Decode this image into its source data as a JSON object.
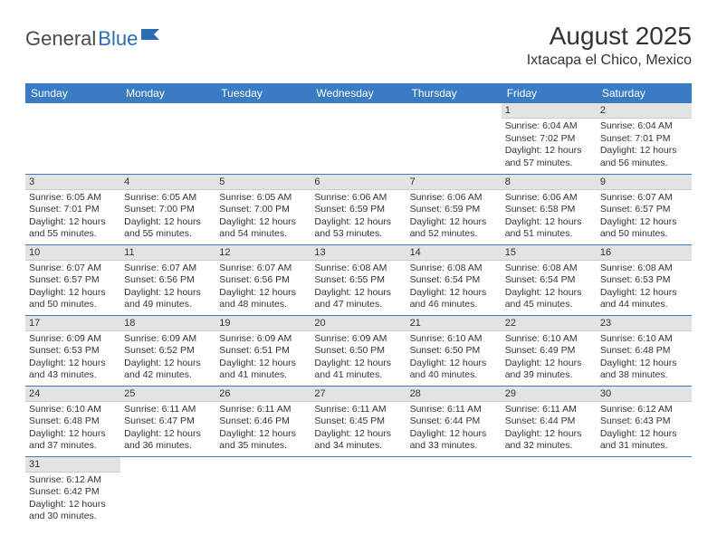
{
  "logo": {
    "text1": "General",
    "text2": "Blue"
  },
  "title": "August 2025",
  "location": "Ixtacapa el Chico, Mexico",
  "colors": {
    "header_bg": "#3a7cc4",
    "daynum_bg": "#e3e3e3",
    "rule": "#3a7cc4"
  },
  "weekdays": [
    "Sunday",
    "Monday",
    "Tuesday",
    "Wednesday",
    "Thursday",
    "Friday",
    "Saturday"
  ],
  "weeks": [
    [
      null,
      null,
      null,
      null,
      null,
      {
        "n": "1",
        "sr": "Sunrise: 6:04 AM",
        "ss": "Sunset: 7:02 PM",
        "d1": "Daylight: 12 hours",
        "d2": "and 57 minutes."
      },
      {
        "n": "2",
        "sr": "Sunrise: 6:04 AM",
        "ss": "Sunset: 7:01 PM",
        "d1": "Daylight: 12 hours",
        "d2": "and 56 minutes."
      }
    ],
    [
      {
        "n": "3",
        "sr": "Sunrise: 6:05 AM",
        "ss": "Sunset: 7:01 PM",
        "d1": "Daylight: 12 hours",
        "d2": "and 55 minutes."
      },
      {
        "n": "4",
        "sr": "Sunrise: 6:05 AM",
        "ss": "Sunset: 7:00 PM",
        "d1": "Daylight: 12 hours",
        "d2": "and 55 minutes."
      },
      {
        "n": "5",
        "sr": "Sunrise: 6:05 AM",
        "ss": "Sunset: 7:00 PM",
        "d1": "Daylight: 12 hours",
        "d2": "and 54 minutes."
      },
      {
        "n": "6",
        "sr": "Sunrise: 6:06 AM",
        "ss": "Sunset: 6:59 PM",
        "d1": "Daylight: 12 hours",
        "d2": "and 53 minutes."
      },
      {
        "n": "7",
        "sr": "Sunrise: 6:06 AM",
        "ss": "Sunset: 6:59 PM",
        "d1": "Daylight: 12 hours",
        "d2": "and 52 minutes."
      },
      {
        "n": "8",
        "sr": "Sunrise: 6:06 AM",
        "ss": "Sunset: 6:58 PM",
        "d1": "Daylight: 12 hours",
        "d2": "and 51 minutes."
      },
      {
        "n": "9",
        "sr": "Sunrise: 6:07 AM",
        "ss": "Sunset: 6:57 PM",
        "d1": "Daylight: 12 hours",
        "d2": "and 50 minutes."
      }
    ],
    [
      {
        "n": "10",
        "sr": "Sunrise: 6:07 AM",
        "ss": "Sunset: 6:57 PM",
        "d1": "Daylight: 12 hours",
        "d2": "and 50 minutes."
      },
      {
        "n": "11",
        "sr": "Sunrise: 6:07 AM",
        "ss": "Sunset: 6:56 PM",
        "d1": "Daylight: 12 hours",
        "d2": "and 49 minutes."
      },
      {
        "n": "12",
        "sr": "Sunrise: 6:07 AM",
        "ss": "Sunset: 6:56 PM",
        "d1": "Daylight: 12 hours",
        "d2": "and 48 minutes."
      },
      {
        "n": "13",
        "sr": "Sunrise: 6:08 AM",
        "ss": "Sunset: 6:55 PM",
        "d1": "Daylight: 12 hours",
        "d2": "and 47 minutes."
      },
      {
        "n": "14",
        "sr": "Sunrise: 6:08 AM",
        "ss": "Sunset: 6:54 PM",
        "d1": "Daylight: 12 hours",
        "d2": "and 46 minutes."
      },
      {
        "n": "15",
        "sr": "Sunrise: 6:08 AM",
        "ss": "Sunset: 6:54 PM",
        "d1": "Daylight: 12 hours",
        "d2": "and 45 minutes."
      },
      {
        "n": "16",
        "sr": "Sunrise: 6:08 AM",
        "ss": "Sunset: 6:53 PM",
        "d1": "Daylight: 12 hours",
        "d2": "and 44 minutes."
      }
    ],
    [
      {
        "n": "17",
        "sr": "Sunrise: 6:09 AM",
        "ss": "Sunset: 6:53 PM",
        "d1": "Daylight: 12 hours",
        "d2": "and 43 minutes."
      },
      {
        "n": "18",
        "sr": "Sunrise: 6:09 AM",
        "ss": "Sunset: 6:52 PM",
        "d1": "Daylight: 12 hours",
        "d2": "and 42 minutes."
      },
      {
        "n": "19",
        "sr": "Sunrise: 6:09 AM",
        "ss": "Sunset: 6:51 PM",
        "d1": "Daylight: 12 hours",
        "d2": "and 41 minutes."
      },
      {
        "n": "20",
        "sr": "Sunrise: 6:09 AM",
        "ss": "Sunset: 6:50 PM",
        "d1": "Daylight: 12 hours",
        "d2": "and 41 minutes."
      },
      {
        "n": "21",
        "sr": "Sunrise: 6:10 AM",
        "ss": "Sunset: 6:50 PM",
        "d1": "Daylight: 12 hours",
        "d2": "and 40 minutes."
      },
      {
        "n": "22",
        "sr": "Sunrise: 6:10 AM",
        "ss": "Sunset: 6:49 PM",
        "d1": "Daylight: 12 hours",
        "d2": "and 39 minutes."
      },
      {
        "n": "23",
        "sr": "Sunrise: 6:10 AM",
        "ss": "Sunset: 6:48 PM",
        "d1": "Daylight: 12 hours",
        "d2": "and 38 minutes."
      }
    ],
    [
      {
        "n": "24",
        "sr": "Sunrise: 6:10 AM",
        "ss": "Sunset: 6:48 PM",
        "d1": "Daylight: 12 hours",
        "d2": "and 37 minutes."
      },
      {
        "n": "25",
        "sr": "Sunrise: 6:11 AM",
        "ss": "Sunset: 6:47 PM",
        "d1": "Daylight: 12 hours",
        "d2": "and 36 minutes."
      },
      {
        "n": "26",
        "sr": "Sunrise: 6:11 AM",
        "ss": "Sunset: 6:46 PM",
        "d1": "Daylight: 12 hours",
        "d2": "and 35 minutes."
      },
      {
        "n": "27",
        "sr": "Sunrise: 6:11 AM",
        "ss": "Sunset: 6:45 PM",
        "d1": "Daylight: 12 hours",
        "d2": "and 34 minutes."
      },
      {
        "n": "28",
        "sr": "Sunrise: 6:11 AM",
        "ss": "Sunset: 6:44 PM",
        "d1": "Daylight: 12 hours",
        "d2": "and 33 minutes."
      },
      {
        "n": "29",
        "sr": "Sunrise: 6:11 AM",
        "ss": "Sunset: 6:44 PM",
        "d1": "Daylight: 12 hours",
        "d2": "and 32 minutes."
      },
      {
        "n": "30",
        "sr": "Sunrise: 6:12 AM",
        "ss": "Sunset: 6:43 PM",
        "d1": "Daylight: 12 hours",
        "d2": "and 31 minutes."
      }
    ],
    [
      {
        "n": "31",
        "sr": "Sunrise: 6:12 AM",
        "ss": "Sunset: 6:42 PM",
        "d1": "Daylight: 12 hours",
        "d2": "and 30 minutes."
      },
      null,
      null,
      null,
      null,
      null,
      null
    ]
  ]
}
